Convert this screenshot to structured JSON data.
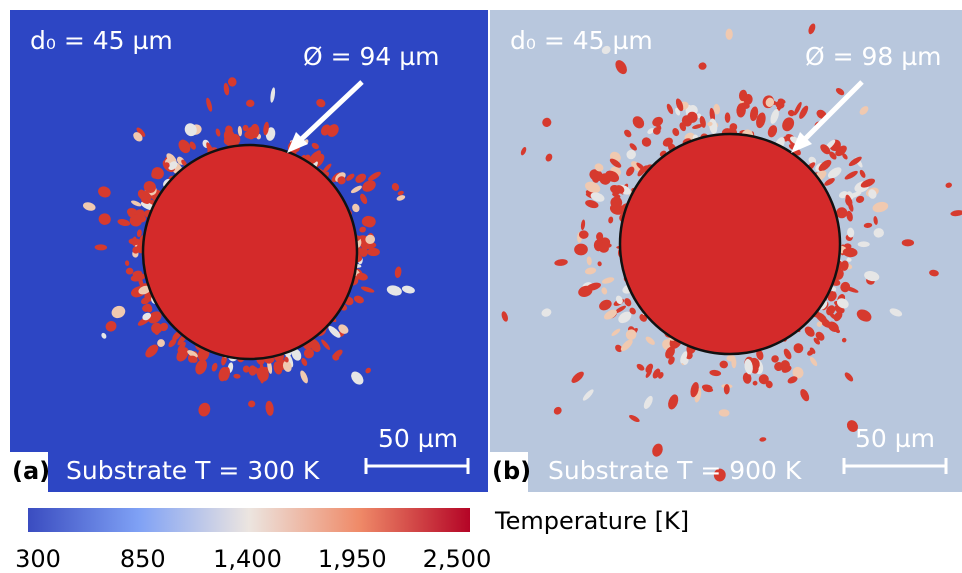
{
  "panels": [
    {
      "label": "(a)",
      "initial_diameter": "d₀ = 45 µm",
      "spread_diameter": "Ø = 94 µm",
      "scale_bar": "50 µm",
      "substrate": "Substrate T = 300 K"
    },
    {
      "label": "(b)",
      "initial_diameter": "d₀ = 45 µm",
      "spread_diameter": "Ø = 98 µm",
      "scale_bar": "50 µm",
      "substrate": "Substrate T = 900 K"
    }
  ],
  "colorbar": {
    "title": "Temperature [K]",
    "range": [
      300,
      2500
    ],
    "ticks": [
      300,
      850,
      {
        "value": 1400,
        "label": "1,400"
      },
      {
        "value": 1950,
        "label": "1,950"
      },
      {
        "value": 2500,
        "label": "2,500"
      }
    ]
  }
}
